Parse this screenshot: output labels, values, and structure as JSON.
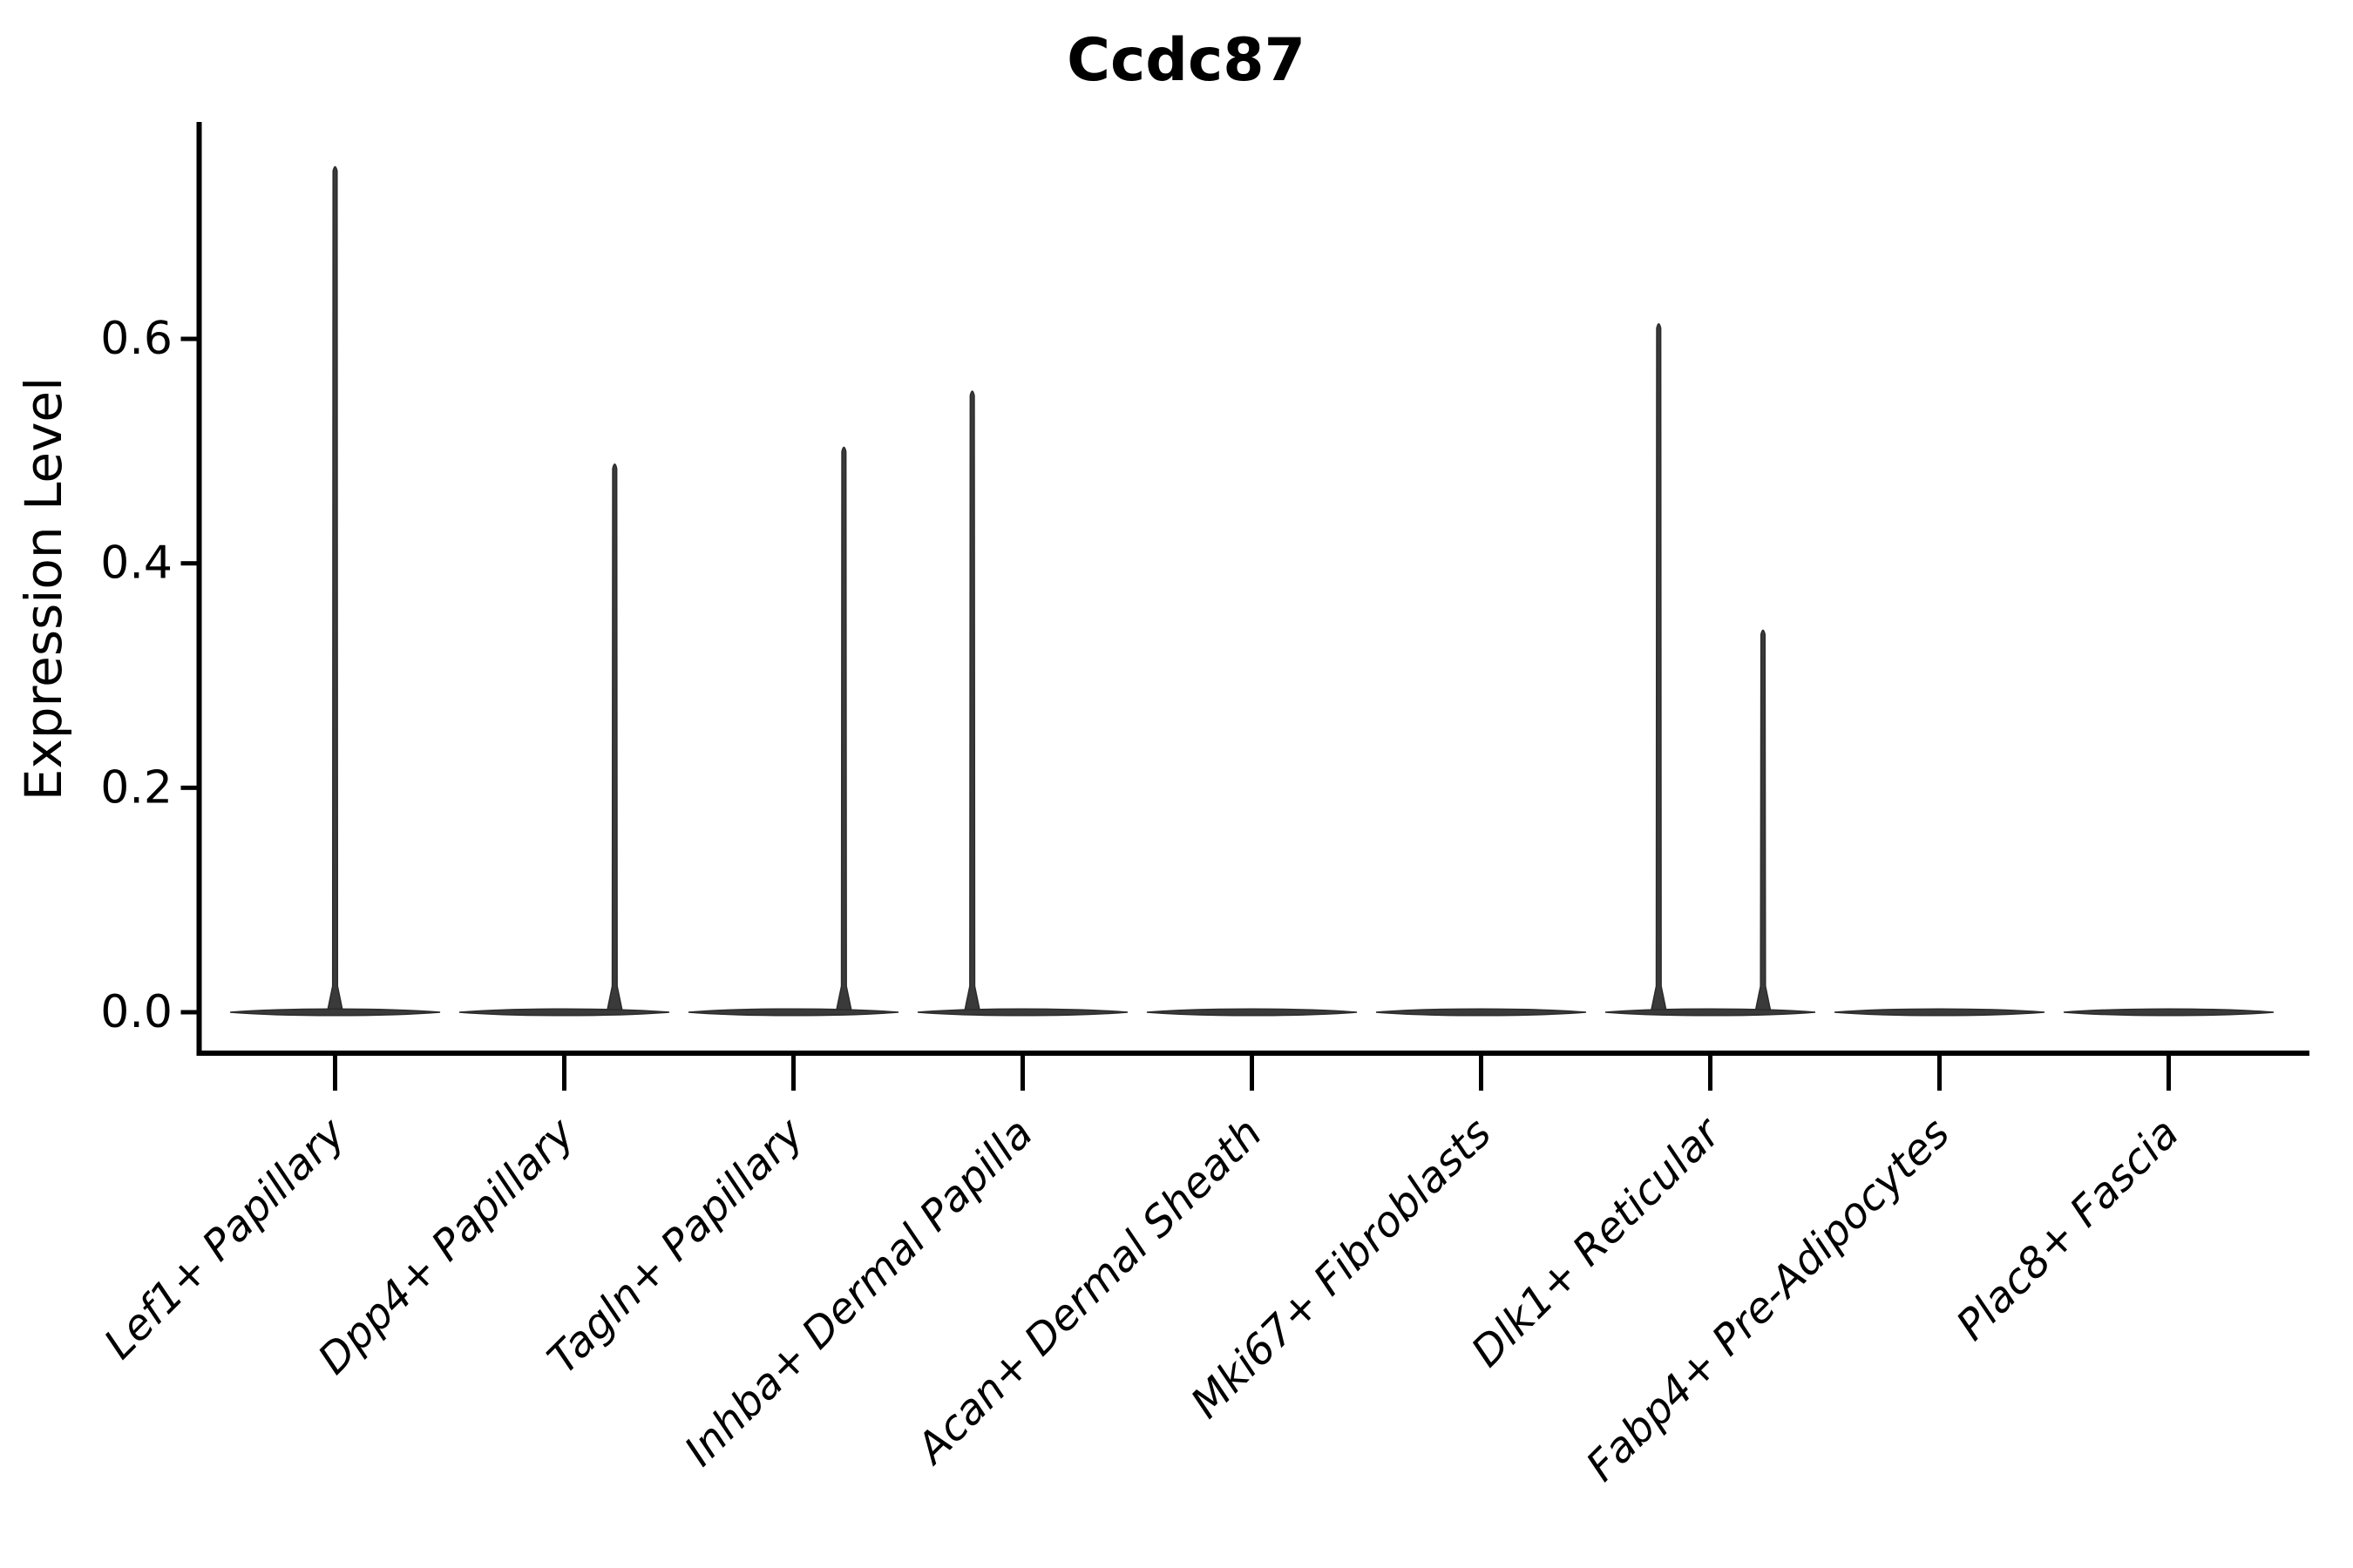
{
  "chart_data": {
    "type": "violin",
    "title": "Ccdc87",
    "ylabel": "Expression Level",
    "xlabel": "",
    "legend": "none",
    "grid": false,
    "background": "#ffffff",
    "ylim": [
      -0.038,
      0.793
    ],
    "ytick_labels": [
      "0.0",
      "0.2",
      "0.4",
      "0.6"
    ],
    "ytick_values": [
      0.0,
      0.2,
      0.4,
      0.6
    ],
    "categories": [
      "Lef1+ Papillary",
      "Dpp4+ Papillary",
      "Tagln+ Papillary",
      "Inhba+ Dermal Papilla",
      "Acan+ Dermal Sheath",
      "Mki67+ Fibroblasts",
      "Dlk1+ Reticular",
      "Fabp4+ Pre-Adipocytes",
      "Plac8+ Fascia"
    ],
    "violins": [
      {
        "category": "Lef1+ Papillary",
        "body_at_zero": true,
        "spikes": [
          {
            "offset_frac": 0.0,
            "max": 0.755
          }
        ]
      },
      {
        "category": "Dpp4+ Papillary",
        "body_at_zero": true,
        "spikes": [
          {
            "offset_frac": 0.22,
            "max": 0.49
          }
        ]
      },
      {
        "category": "Tagln+ Papillary",
        "body_at_zero": true,
        "spikes": [
          {
            "offset_frac": 0.22,
            "max": 0.505
          }
        ]
      },
      {
        "category": "Inhba+ Dermal Papilla",
        "body_at_zero": true,
        "spikes": [
          {
            "offset_frac": -0.22,
            "max": 0.555
          }
        ]
      },
      {
        "category": "Acan+ Dermal Sheath",
        "body_at_zero": true,
        "spikes": []
      },
      {
        "category": "Mki67+ Fibroblasts",
        "body_at_zero": true,
        "spikes": []
      },
      {
        "category": "Dlk1+ Reticular",
        "body_at_zero": true,
        "spikes": [
          {
            "offset_frac": -0.225,
            "max": 0.615
          },
          {
            "offset_frac": 0.23,
            "max": 0.342
          }
        ]
      },
      {
        "category": "Fabp4+ Pre-Adipocytes",
        "body_at_zero": true,
        "spikes": []
      },
      {
        "category": "Plac8+ Fascia",
        "body_at_zero": true,
        "spikes": []
      }
    ],
    "colors": {
      "violin_fill": "#3a3a3a",
      "violin_stroke": "#2b2b2b",
      "axis": "#000000",
      "text": "#000000"
    }
  }
}
